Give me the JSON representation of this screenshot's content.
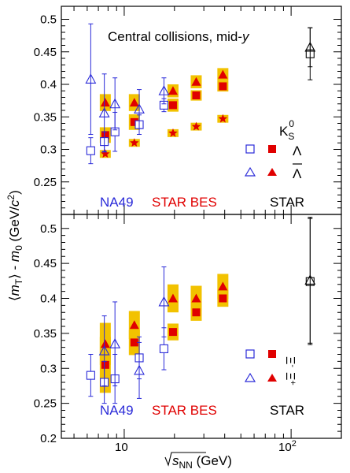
{
  "colors": {
    "na49": "#2a2ad8",
    "star_bes": "#e00000",
    "star": "#000000",
    "band": "#f2c200"
  },
  "chart_data": [
    {
      "type": "scatter",
      "panel": "top",
      "title": "Central collisions, mid-y",
      "ylabel": "⟨m_T⟩ - m_0 (GeV/c²)",
      "xscale": "log",
      "xlim": [
        4.2,
        200
      ],
      "ylim": [
        0.2,
        0.52
      ],
      "yticks": [
        "0.25",
        "0.3",
        "0.35",
        "0.4",
        "0.45",
        "0.5"
      ],
      "legend_groups": [
        "NA49",
        "STAR BES",
        "STAR"
      ],
      "legend_species": [
        "K_S^0",
        "Λ",
        "Λ̄"
      ],
      "series": [
        {
          "name": "K_S^0",
          "group": "STAR BES",
          "marker": "star",
          "x": [
            7.7,
            11.5,
            19.6,
            27,
            39
          ],
          "y": [
            0.293,
            0.31,
            0.325,
            0.335,
            0.347
          ],
          "sys": [
            0.006,
            0.006,
            0.006,
            0.006,
            0.006
          ]
        },
        {
          "name": "Λ",
          "group": "STAR BES",
          "marker": "square-filled",
          "x": [
            7.7,
            11.5,
            19.6,
            27,
            39
          ],
          "y": [
            0.322,
            0.342,
            0.368,
            0.383,
            0.397
          ],
          "sys": [
            0.012,
            0.012,
            0.01,
            0.008,
            0.008
          ]
        },
        {
          "name": "Λ̄",
          "group": "STAR BES",
          "marker": "triangle-filled",
          "x": [
            7.7,
            11.5,
            19.6,
            27,
            39
          ],
          "y": [
            0.372,
            0.372,
            0.39,
            0.404,
            0.415
          ],
          "sys": [
            0.013,
            0.013,
            0.01,
            0.01,
            0.01
          ]
        },
        {
          "name": "Λ",
          "group": "NA49",
          "marker": "square-open",
          "x": [
            6.3,
            7.6,
            8.8,
            12.3,
            17.3
          ],
          "y": [
            0.298,
            0.312,
            0.327,
            0.338,
            0.368
          ],
          "err": [
            0.02,
            0.015,
            0.03,
            0.015,
            0.01
          ]
        },
        {
          "name": "Λ̄",
          "group": "NA49",
          "marker": "triangle-open",
          "x": [
            6.3,
            7.6,
            8.8,
            12.3,
            17.3
          ],
          "y": [
            0.408,
            0.356,
            0.37,
            0.362,
            0.39
          ],
          "err": [
            0.085,
            0.06,
            0.04,
            0.03,
            0.02
          ]
        },
        {
          "name": "Λ",
          "group": "STAR",
          "marker": "square-open",
          "x": [
            130
          ],
          "y": [
            0.447
          ],
          "err": [
            0.04
          ]
        },
        {
          "name": "Λ̄",
          "group": "STAR",
          "marker": "triangle-open",
          "x": [
            130
          ],
          "y": [
            0.457
          ],
          "err": [
            0.03
          ]
        }
      ]
    },
    {
      "type": "scatter",
      "panel": "bottom",
      "xlabel": "√s_NN (GeV)",
      "xscale": "log",
      "xlim": [
        4.2,
        200
      ],
      "ylim": [
        0.2,
        0.52
      ],
      "xticks": [
        "10",
        "10²"
      ],
      "yticks": [
        "0.2",
        "0.25",
        "0.3",
        "0.35",
        "0.4",
        "0.45",
        "0.5"
      ],
      "legend_groups": [
        "NA49",
        "STAR BES",
        "STAR"
      ],
      "legend_species": [
        "Ξ⁻",
        "Ξ̄⁺"
      ],
      "series": [
        {
          "name": "Ξ⁻",
          "group": "STAR BES",
          "marker": "square-filled",
          "x": [
            7.7,
            11.5,
            19.6,
            27,
            39
          ],
          "y": [
            0.305,
            0.337,
            0.352,
            0.38,
            0.4
          ],
          "sys": [
            0.04,
            0.018,
            0.012,
            0.012,
            0.012
          ]
        },
        {
          "name": "Ξ̄⁺",
          "group": "STAR BES",
          "marker": "triangle-filled",
          "x": [
            7.7,
            11.5,
            19.6,
            27,
            39
          ],
          "y": [
            0.335,
            0.362,
            0.4,
            0.4,
            0.417
          ],
          "sys": [
            0.03,
            0.02,
            0.02,
            0.018,
            0.018
          ]
        },
        {
          "name": "Ξ⁻",
          "group": "NA49",
          "marker": "square-open",
          "x": [
            6.3,
            7.6,
            8.8,
            12.3,
            17.3
          ],
          "y": [
            0.29,
            0.28,
            0.285,
            0.315,
            0.328
          ],
          "err": [
            0.03,
            0.03,
            0.035,
            0.03,
            0.03
          ]
        },
        {
          "name": "Ξ̄⁺",
          "group": "NA49",
          "marker": "triangle-open",
          "x": [
            7.6,
            8.8,
            12.3,
            17.3
          ],
          "y": [
            0.325,
            0.335,
            0.297,
            0.395
          ],
          "err": [
            0.05,
            0.06,
            0.04,
            0.05
          ]
        },
        {
          "name": "Ξ⁻",
          "group": "STAR",
          "marker": "square-open",
          "x": [
            130
          ],
          "y": [
            0.424
          ],
          "err": [
            0.09
          ]
        },
        {
          "name": "Ξ̄⁺",
          "group": "STAR",
          "marker": "triangle-open",
          "x": [
            130
          ],
          "y": [
            0.426
          ],
          "err": [
            0.09
          ]
        }
      ]
    }
  ]
}
